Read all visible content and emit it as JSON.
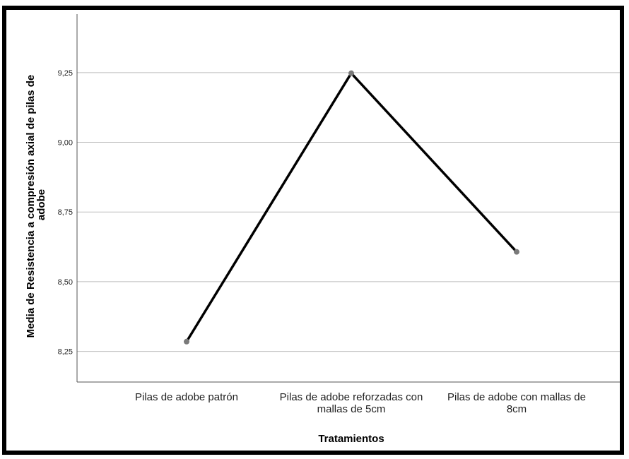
{
  "chart_data": {
    "type": "line",
    "title": "",
    "xlabel": "Tratamientos",
    "ylabel_lines": [
      "Media de Resistencia a compresión axial de pilas de",
      "adobe"
    ],
    "categories": [
      [
        "Pilas de adobe patrón"
      ],
      [
        "Pilas de adobe reforzadas con",
        "mallas de 5cm"
      ],
      [
        "Pilas de adobe con mallas de",
        "8cm"
      ]
    ],
    "values": [
      8.285,
      9.248,
      8.607
    ],
    "ylim": [
      8.14,
      9.46
    ],
    "yticks": [
      8.25,
      8.5,
      8.75,
      9.0,
      9.25
    ],
    "ytick_labels": [
      "8,25",
      "8,50",
      "8,75",
      "9,00",
      "9,25"
    ],
    "grid": true,
    "legend": "none",
    "colors": {
      "line": "#000000",
      "marker": "#7a7a7a",
      "grid": "#bdbdbd",
      "axis": "#555555"
    }
  }
}
